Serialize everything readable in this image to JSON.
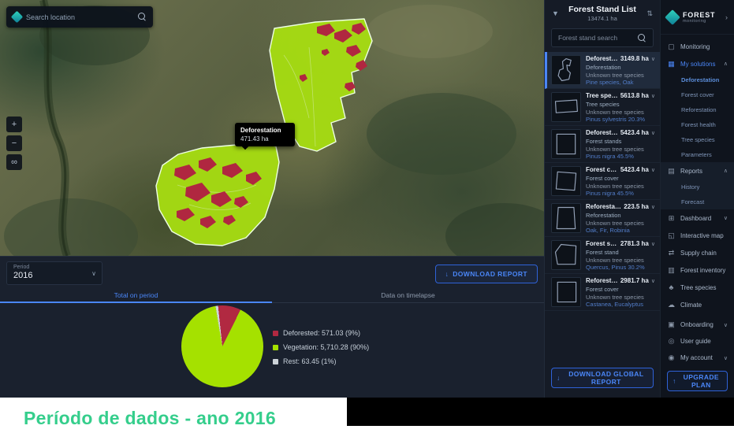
{
  "chart_data": {
    "type": "pie",
    "title": "",
    "legend_position": "right",
    "start_angle_deg": -6,
    "slices": [
      {
        "label": "Deforested: 571.03 (9%)",
        "value": 9,
        "color": "#b12941"
      },
      {
        "label": "Vegetation: 5,710.28 (90%)",
        "value": 90,
        "color": "#a5e100"
      },
      {
        "label": "Rest: 63.45 (1%)",
        "value": 1,
        "color": "#ccd3d8"
      }
    ]
  },
  "map": {
    "search_placeholder": "Search location",
    "tooltip": {
      "title": "Deforestation",
      "value": "471.43 ha"
    },
    "controls": {
      "zoom_in": "+",
      "zoom_out": "−",
      "share": "∞"
    }
  },
  "bottom_panel": {
    "period_label": "Period",
    "period_value": "2016",
    "download_report_label": "DOWNLOAD REPORT",
    "tabs": [
      {
        "label": "Total on period",
        "active": true
      },
      {
        "label": "Data on timelapse",
        "active": false
      }
    ]
  },
  "stand_list": {
    "title": "Forest Stand List",
    "total_area": "13474.1 ha",
    "search_placeholder": "Forest stand search",
    "download_button_label": "DOWNLOAD GLOBAL REPORT",
    "items": [
      {
        "name": "Deforestation s...",
        "area": "3149.8 ha",
        "lines": [
          "Deforestation",
          "Unknown tree species",
          "Pine species, Oak"
        ],
        "selected": true
      },
      {
        "name": "Tree species ...",
        "area": "5613.8 ha",
        "lines": [
          "Tree species",
          "Unknown tree species",
          "Pinus sylvestris 20.3%"
        ],
        "selected": false
      },
      {
        "name": "Deforestation...",
        "area": "5423.4 ha",
        "lines": [
          "Forest stands",
          "Unknown tree species",
          "Pinus nigra 45.5%"
        ],
        "selected": false
      },
      {
        "name": "Forest cover ...",
        "area": "5423.4 ha",
        "lines": [
          "Forest cover",
          "Unknown tree species",
          "Pinus nigra 45.5%"
        ],
        "selected": false
      },
      {
        "name": "Reforestation...",
        "area": "223.5 ha",
        "lines": [
          "Reforestation",
          "Unknown tree species",
          "Oak, Fir, Robinia"
        ],
        "selected": false
      },
      {
        "name": "Forest stand...",
        "area": "2781.3 ha",
        "lines": [
          "Forest stand",
          "Unknown tree species",
          "Quercus, Pinus 30.2%"
        ],
        "selected": false
      },
      {
        "name": "Reforestation...",
        "area": "2981.7 ha",
        "lines": [
          "Forest cover",
          "Unknown tree species",
          "Castanea, Eucalyptus"
        ],
        "selected": false
      }
    ]
  },
  "nav": {
    "brand": "FOREST",
    "brand_sub": "monitoring",
    "upgrade_button_label": "UPGRADE PLAN",
    "items": [
      {
        "label": "Monitoring",
        "icon": "monitor-icon",
        "type": "item"
      },
      {
        "label": "My solutions",
        "icon": "grid-icon",
        "type": "group",
        "state": "expanded",
        "active": true
      },
      {
        "label": "Deforestation",
        "type": "subitem",
        "active": true
      },
      {
        "label": "Forest cover",
        "type": "subitem"
      },
      {
        "label": "Reforestation",
        "type": "subitem"
      },
      {
        "label": "Forest health",
        "type": "subitem"
      },
      {
        "label": "Tree species",
        "type": "subitem"
      },
      {
        "label": "Parameters",
        "type": "subitem"
      },
      {
        "label": "Reports",
        "icon": "folder-icon",
        "type": "group",
        "state": "expanded",
        "shaded": true
      },
      {
        "label": "History",
        "type": "subitem",
        "shaded": true
      },
      {
        "label": "Forecast",
        "type": "subitem",
        "shaded": true
      },
      {
        "label": "Dashboard",
        "icon": "dashboard-icon",
        "type": "group",
        "state": "collapsed"
      },
      {
        "label": "Interactive map",
        "icon": "map-icon",
        "type": "item"
      },
      {
        "label": "Supply chain",
        "icon": "chain-icon",
        "type": "item"
      },
      {
        "label": "Forest inventory",
        "icon": "inventory-icon",
        "type": "item"
      },
      {
        "label": "Tree species",
        "icon": "tree-icon",
        "type": "item"
      },
      {
        "label": "Climate",
        "icon": "climate-icon",
        "type": "item"
      }
    ],
    "footer_items": [
      {
        "label": "Onboarding",
        "icon": "onboarding-icon",
        "state": "collapsed"
      },
      {
        "label": "User guide",
        "icon": "help-icon"
      },
      {
        "label": "My account",
        "icon": "user-icon",
        "state": "collapsed"
      }
    ]
  },
  "caption": "Período de dados - ano 2016"
}
